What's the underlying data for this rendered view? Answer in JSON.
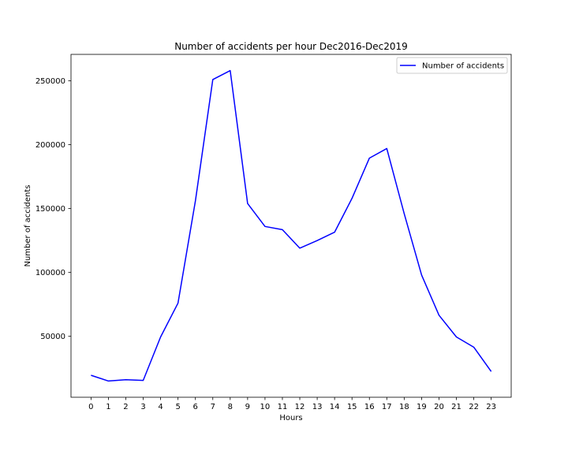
{
  "chart_data": {
    "type": "line",
    "title": "Number of accidents per hour Dec2016-Dec2019",
    "xlabel": "Hours",
    "ylabel": "Number of accidents",
    "x": [
      0,
      1,
      2,
      3,
      4,
      5,
      6,
      7,
      8,
      9,
      10,
      11,
      12,
      13,
      14,
      15,
      16,
      17,
      18,
      19,
      20,
      21,
      22,
      23
    ],
    "x_tick_labels": [
      "0",
      "1",
      "2",
      "3",
      "4",
      "5",
      "6",
      "7",
      "8",
      "9",
      "10",
      "11",
      "12",
      "13",
      "14",
      "15",
      "16",
      "17",
      "18",
      "19",
      "20",
      "21",
      "22",
      "23"
    ],
    "series": [
      {
        "name": "Number of accidents",
        "color": "#0000ff",
        "values": [
          19500,
          15000,
          16000,
          15500,
          49500,
          76000,
          156000,
          251000,
          258000,
          154000,
          136000,
          133500,
          119000,
          125000,
          131500,
          158000,
          189500,
          197000,
          146000,
          98000,
          66500,
          49500,
          41500,
          22500
        ]
      }
    ],
    "y_ticks": [
      50000,
      100000,
      150000,
      200000,
      250000
    ],
    "y_tick_labels": [
      "50000",
      "100000",
      "150000",
      "200000",
      "250000"
    ],
    "xlim": [
      -1.15,
      24.15
    ],
    "ylim": [
      2300,
      270700
    ],
    "grid": false,
    "legend_position": "upper right"
  }
}
